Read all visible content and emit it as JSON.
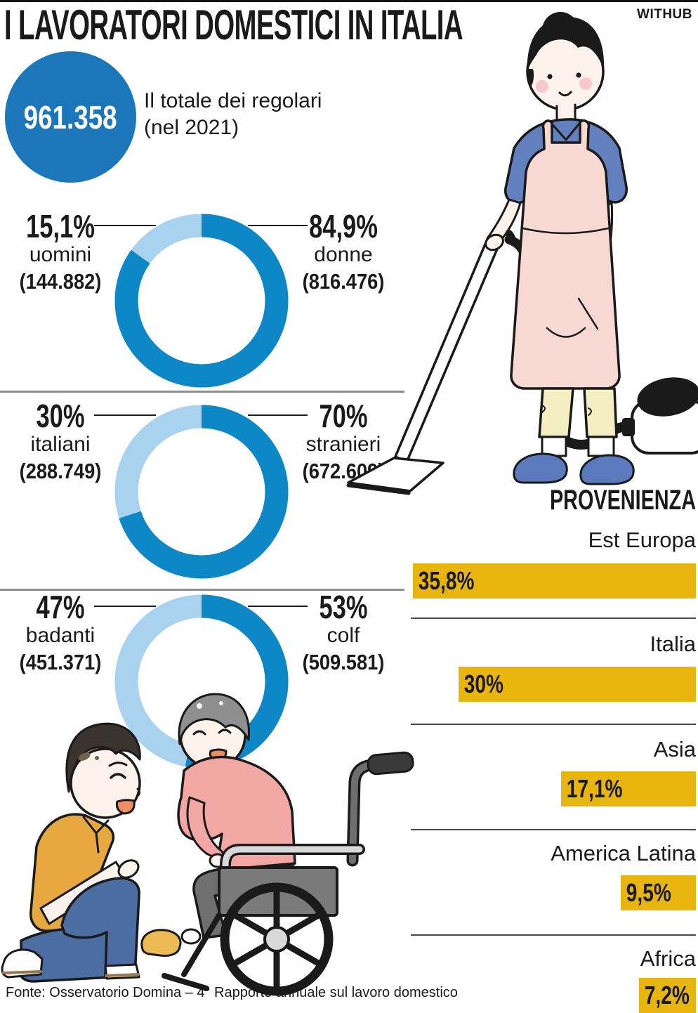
{
  "page": {
    "title": "I LAVORATORI DOMESTICI IN ITALIA",
    "brand": "WITHUB",
    "source": "Fonte: Osservatorio Domina – 4° Rapporto annuale sul lavoro domestico"
  },
  "total": {
    "value": "961.358",
    "line1": "Il totale dei regolari",
    "line2": "(nel 2021)"
  },
  "colors": {
    "donut_light": "#a9d2ee",
    "donut_dark": "#0e87c7",
    "total_circle": "#1b76ba",
    "bar_yellow": "#e8b50f",
    "text": "#1a1a1a"
  },
  "chart_data": [
    {
      "type": "pie",
      "id": "genere",
      "slices": [
        {
          "label": "uomini",
          "value_pct": 15.1,
          "pct_label": "15,1%",
          "count_label": "(144.882)",
          "color": "#a9d2ee"
        },
        {
          "label": "donne",
          "value_pct": 84.9,
          "pct_label": "84,9%",
          "count_label": "(816.476)",
          "color": "#0e87c7"
        }
      ]
    },
    {
      "type": "pie",
      "id": "nazionalita",
      "slices": [
        {
          "label": "italiani",
          "value_pct": 30,
          "pct_label": "30%",
          "count_label": "(288.749)",
          "color": "#a9d2ee"
        },
        {
          "label": "stranieri",
          "value_pct": 70,
          "pct_label": "70%",
          "count_label": "(672.609)",
          "color": "#0e87c7"
        }
      ]
    },
    {
      "type": "pie",
      "id": "mansione",
      "slices": [
        {
          "label": "badanti",
          "value_pct": 47,
          "pct_label": "47%",
          "count_label": "(451.371)",
          "color": "#a9d2ee"
        },
        {
          "label": "colf",
          "value_pct": 53,
          "pct_label": "53%",
          "count_label": "(509.581)",
          "color": "#0e87c7"
        }
      ]
    },
    {
      "type": "bar",
      "id": "provenienza",
      "title": "PROVENIENZA",
      "orientation": "horizontal",
      "anchor": "right",
      "xlim": [
        0,
        35.8
      ],
      "bar_color": "#e8b50f",
      "categories": [
        "Est Europa",
        "Italia",
        "Asia",
        "America Latina",
        "Africa"
      ],
      "values": [
        35.8,
        30,
        17.1,
        9.5,
        7.2
      ],
      "value_labels": [
        "35,8%",
        "30%",
        "17,1%",
        "9,5%",
        "7,2%"
      ]
    }
  ]
}
